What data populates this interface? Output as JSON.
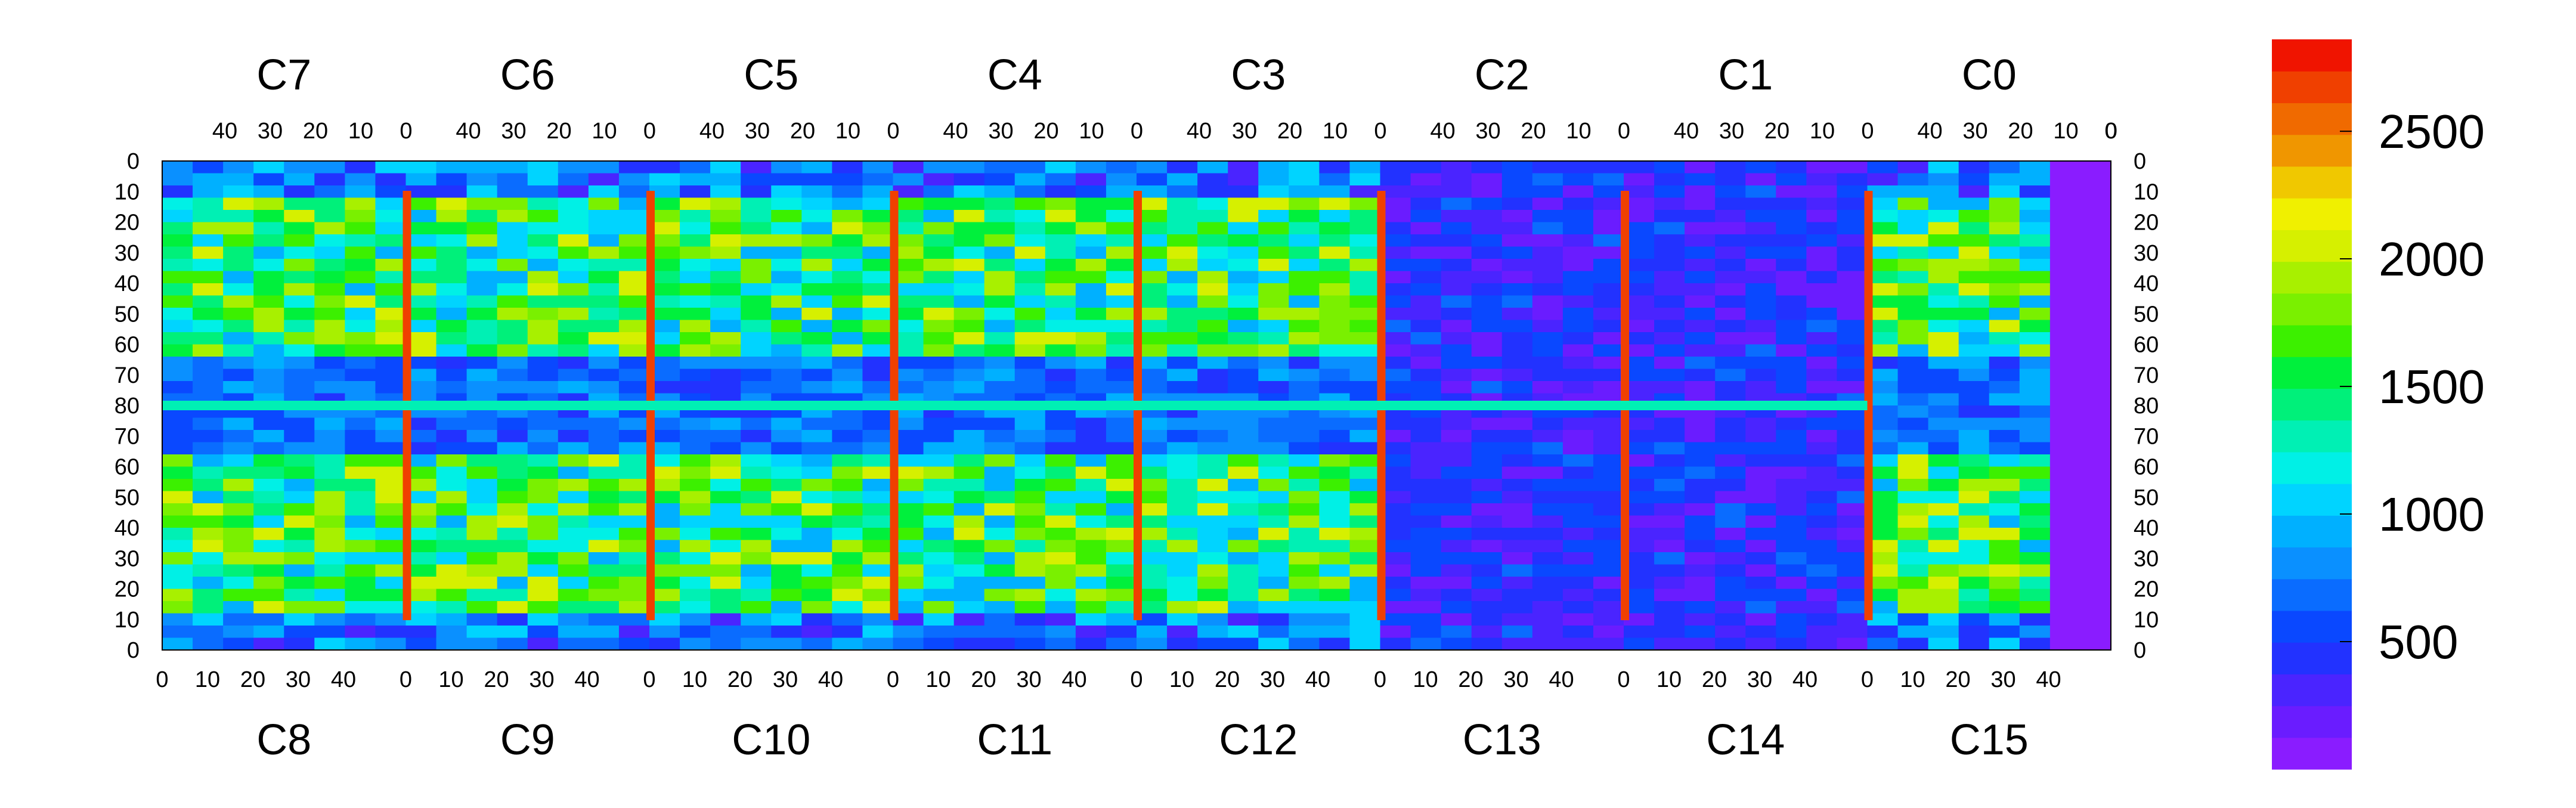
{
  "chart_data": {
    "type": "heatmap",
    "title": "",
    "top_chip_labels": [
      "C7",
      "C6",
      "C5",
      "C4",
      "C3",
      "C2",
      "C1",
      "C0"
    ],
    "bottom_chip_labels": [
      "C8",
      "C9",
      "C10",
      "C11",
      "C12",
      "C13",
      "C14",
      "C15"
    ],
    "top_x_ticks": [
      "40",
      "30",
      "20",
      "10",
      "0"
    ],
    "top_x_last_tick": "0",
    "bottom_x_ticks": [
      "0",
      "10",
      "20",
      "30",
      "40"
    ],
    "y_ticks_upper": [
      "0",
      "10",
      "20",
      "30",
      "40",
      "50",
      "60",
      "70",
      "80"
    ],
    "y_ticks_lower": [
      "70",
      "60",
      "50",
      "40",
      "30",
      "20",
      "10",
      "0"
    ],
    "colorbar": {
      "min": 0,
      "max": 2860,
      "ticks": [
        500,
        1000,
        1500,
        2000,
        2500
      ],
      "tick_labels": [
        "500",
        "1000",
        "1500",
        "2000",
        "2500"
      ],
      "colors": [
        "#8a1cff",
        "#6a1cff",
        "#4a24ff",
        "#2232ff",
        "#0a48ff",
        "#0a6cff",
        "#0a90ff",
        "#00b0ff",
        "#00d4ff",
        "#00f0e6",
        "#00f0b4",
        "#00f07a",
        "#00f03c",
        "#3cf000",
        "#7af000",
        "#a8f000",
        "#d6f000",
        "#f0f000",
        "#f0c800",
        "#f09600",
        "#f06a00",
        "#f04000",
        "#f01400"
      ]
    },
    "chips_per_row": 8,
    "columns_per_chip": 52,
    "rows_per_half": 80,
    "colors": {
      "background": "#7f1cff",
      "dead_region": "#7a24ff"
    }
  }
}
